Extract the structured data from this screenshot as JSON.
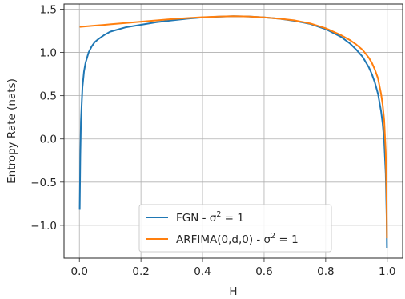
{
  "chart_data": {
    "type": "line",
    "title": "",
    "xlabel": "H",
    "ylabel": "Entropy Rate (nats)",
    "xlim": [
      -0.05,
      1.05
    ],
    "ylim": [
      -1.38,
      1.56
    ],
    "xticks": [
      0.0,
      0.2,
      0.4,
      0.6,
      0.8,
      1.0
    ],
    "xtick_labels": [
      "0.0",
      "0.2",
      "0.4",
      "0.6",
      "0.8",
      "1.0"
    ],
    "yticks": [
      -1.0,
      -0.5,
      0.0,
      0.5,
      1.0,
      1.5
    ],
    "ytick_labels": [
      "−1.0",
      "−0.5",
      "0.0",
      "0.5",
      "1.0",
      "1.5"
    ],
    "grid": true,
    "legend_position": "lower center",
    "series": [
      {
        "name": "FGN - σ² = 1",
        "name_main": "FGN - σ",
        "name_sup": "2",
        "name_tail": " = 1",
        "color": "#1f77b4",
        "x": [
          0.001,
          0.003,
          0.005,
          0.01,
          0.015,
          0.02,
          0.03,
          0.04,
          0.05,
          0.06,
          0.08,
          0.1,
          0.15,
          0.2,
          0.25,
          0.3,
          0.35,
          0.4,
          0.45,
          0.5,
          0.55,
          0.6,
          0.65,
          0.7,
          0.75,
          0.8,
          0.85,
          0.88,
          0.9,
          0.92,
          0.94,
          0.95,
          0.96,
          0.97,
          0.98,
          0.985,
          0.99,
          0.995,
          0.998,
          0.999
        ],
        "y": [
          -0.82,
          -0.2,
          0.2,
          0.6,
          0.78,
          0.88,
          1.0,
          1.07,
          1.12,
          1.15,
          1.2,
          1.24,
          1.29,
          1.32,
          1.35,
          1.37,
          1.39,
          1.405,
          1.413,
          1.419,
          1.415,
          1.405,
          1.39,
          1.365,
          1.33,
          1.27,
          1.18,
          1.1,
          1.03,
          0.95,
          0.83,
          0.75,
          0.65,
          0.52,
          0.32,
          0.18,
          -0.02,
          -0.4,
          -0.9,
          -1.26
        ]
      },
      {
        "name": "ARFIMA(0,d,0) - σ² = 1",
        "name_main": "ARFIMA(0,d,0) - σ",
        "name_sup": "2",
        "name_tail": " = 1",
        "color": "#ff7f0e",
        "x": [
          0.001,
          0.05,
          0.1,
          0.15,
          0.2,
          0.25,
          0.3,
          0.35,
          0.4,
          0.45,
          0.5,
          0.55,
          0.6,
          0.65,
          0.7,
          0.75,
          0.8,
          0.85,
          0.88,
          0.9,
          0.92,
          0.94,
          0.95,
          0.96,
          0.97,
          0.98,
          0.985,
          0.99,
          0.995,
          0.998,
          0.999
        ],
        "y": [
          1.295,
          1.31,
          1.325,
          1.34,
          1.355,
          1.37,
          1.385,
          1.397,
          1.407,
          1.414,
          1.419,
          1.415,
          1.405,
          1.39,
          1.37,
          1.335,
          1.28,
          1.2,
          1.14,
          1.09,
          1.03,
          0.94,
          0.88,
          0.8,
          0.7,
          0.52,
          0.4,
          0.22,
          -0.15,
          -0.7,
          -1.15
        ]
      }
    ]
  }
}
